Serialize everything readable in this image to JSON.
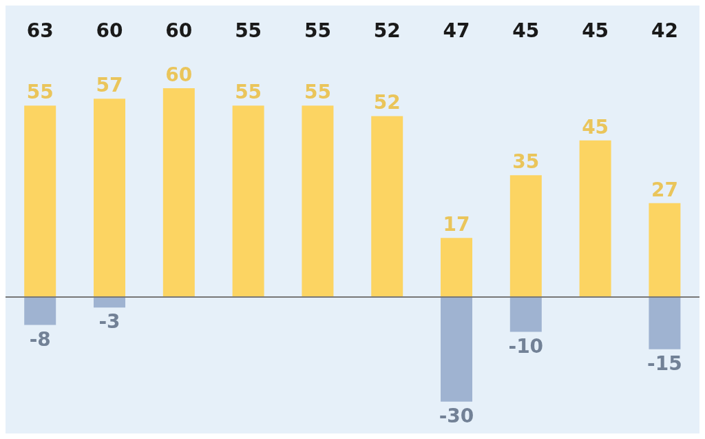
{
  "chart_data": {
    "type": "bar",
    "stacked": true,
    "categories": [
      null,
      null,
      null,
      null,
      null,
      null,
      null,
      null,
      null,
      null
    ],
    "series": [
      {
        "color": "#fcd462",
        "values": [
          55,
          57,
          60,
          55,
          55,
          52,
          17,
          35,
          45,
          27
        ]
      },
      {
        "color": "#9fb3d1",
        "values": [
          -8,
          -3,
          null,
          null,
          null,
          null,
          -30,
          -10,
          null,
          -15
        ]
      }
    ],
    "data_labels": true,
    "annotations": [
      "63",
      "60",
      "60",
      "55",
      "55",
      "52",
      "47",
      "45",
      "45",
      "42"
    ],
    "tick_labels": false
  }
}
